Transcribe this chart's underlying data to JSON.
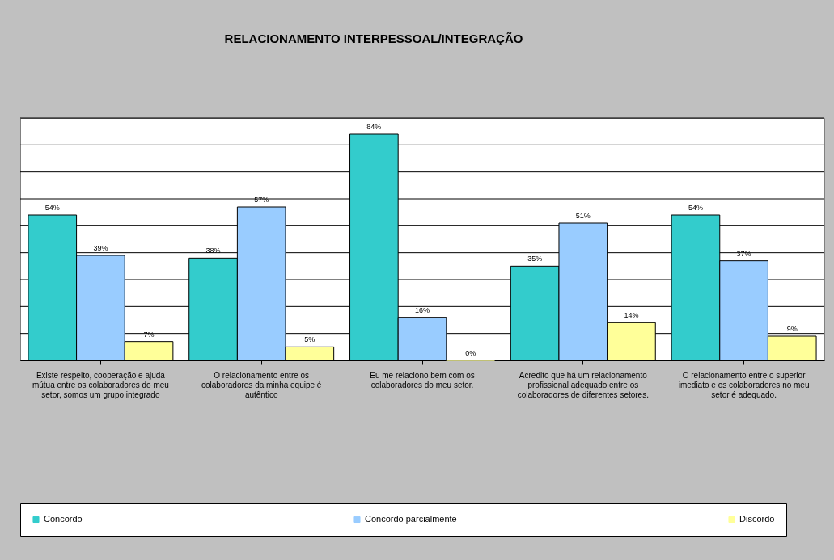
{
  "chart_data": {
    "type": "bar",
    "title": "RELACIONAMENTO INTERPESSOAL/INTEGRAÇÃO",
    "categories": [
      "Existe respeito, cooperação e ajuda mútua entre os colaboradores do meu setor, somos um grupo integrado",
      "O relacionamento entre os colaboradores da minha equipe é autêntico",
      "Eu me relaciono bem com os colaboradores do meu setor.",
      "Acredito que há um relacionamento profissional adequado entre os colaboradores de diferentes setores.",
      "O relacionamento entre o superior imediato e os colaboradores no meu setor é adequado."
    ],
    "series": [
      {
        "name": "Concordo",
        "color": "#33cccc",
        "values": [
          54,
          38,
          84,
          35,
          54
        ],
        "value_labels": [
          "54%",
          "38%",
          "84%",
          "35%",
          "54%"
        ]
      },
      {
        "name": "Concordo parcialmente",
        "color": "#99ccff",
        "values": [
          39,
          57,
          16,
          51,
          37
        ],
        "value_labels": [
          "39%",
          "57%",
          "16%",
          "51%",
          "37%"
        ]
      },
      {
        "name": "Discordo",
        "color": "#ffff99",
        "values": [
          7,
          5,
          0,
          14,
          9
        ],
        "value_labels": [
          "7%",
          "5%",
          "0%",
          "14%",
          "9%"
        ]
      }
    ],
    "ylim": [
      0,
      90
    ],
    "yticks": [
      {
        "value": 0,
        "label": null
      },
      {
        "value": 10,
        "label": null
      },
      {
        "value": 20,
        "label": null
      },
      {
        "value": 30,
        "label": null
      },
      {
        "value": 40,
        "label": null
      },
      {
        "value": 50,
        "label": null
      },
      {
        "value": 60,
        "label": null
      },
      {
        "value": 70,
        "label": null
      },
      {
        "value": 80,
        "label": null
      },
      {
        "value": 90,
        "label": null
      }
    ],
    "tick_labels": "x",
    "grid": "y",
    "legend": "bottom"
  }
}
